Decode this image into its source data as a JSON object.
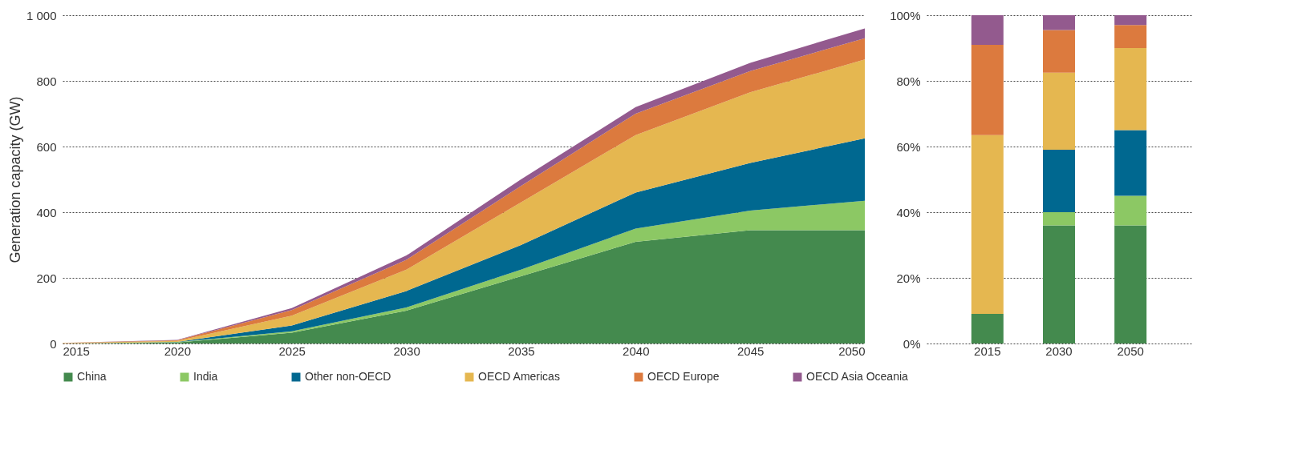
{
  "chart_data": [
    {
      "type": "area",
      "ylabel": "Generation capacity (GW)",
      "stacked": true,
      "x": [
        2015,
        2020,
        2025,
        2030,
        2035,
        2040,
        2045,
        2050
      ],
      "xlim": [
        2015,
        2050
      ],
      "xticks": [
        2015,
        2020,
        2025,
        2030,
        2035,
        2040,
        2045,
        2050
      ],
      "ylim": [
        0,
        1000
      ],
      "yticks": [
        0,
        200,
        400,
        600,
        800,
        {
          "value": 1000,
          "label": "1 000"
        }
      ],
      "grid": "y",
      "legend": "bottom",
      "series": [
        {
          "name": "China",
          "color": "#448a4e",
          "values": [
            0,
            3,
            33,
            100,
            205,
            310,
            345,
            345
          ]
        },
        {
          "name": "India",
          "color": "#8cc864",
          "values": [
            0,
            1,
            4,
            10,
            20,
            40,
            60,
            90
          ]
        },
        {
          "name": "Other non-OECD",
          "color": "#006890",
          "values": [
            0,
            1,
            18,
            50,
            75,
            110,
            145,
            190
          ]
        },
        {
          "name": "OECD Americas",
          "color": "#e5b750",
          "values": [
            1,
            3,
            30,
            65,
            130,
            175,
            215,
            240
          ]
        },
        {
          "name": "OECD Europe",
          "color": "#dc7a3e",
          "values": [
            1,
            2,
            17,
            30,
            50,
            65,
            65,
            65
          ]
        },
        {
          "name": "OECD Asia Oceania",
          "color": "#935a8e",
          "values": [
            0,
            1,
            6,
            13,
            20,
            20,
            25,
            30
          ]
        }
      ]
    },
    {
      "type": "bar",
      "stacked": true,
      "categories": [
        "2015",
        "2030",
        "2050"
      ],
      "ylim": [
        0,
        100
      ],
      "yticks": [
        {
          "value": 0,
          "label": "0%"
        },
        {
          "value": 20,
          "label": "20%"
        },
        {
          "value": 40,
          "label": "40%"
        },
        {
          "value": 60,
          "label": "60%"
        },
        {
          "value": 80,
          "label": "80%"
        },
        {
          "value": 100,
          "label": "100%"
        }
      ],
      "grid": "y",
      "series": [
        {
          "name": "China",
          "color": "#448a4e",
          "values": [
            9,
            36,
            36
          ]
        },
        {
          "name": "India",
          "color": "#8cc864",
          "values": [
            0,
            4,
            9
          ]
        },
        {
          "name": "Other non-OECD",
          "color": "#006890",
          "values": [
            0,
            19,
            20
          ]
        },
        {
          "name": "OECD Americas",
          "color": "#e5b750",
          "values": [
            54.5,
            23.5,
            25
          ]
        },
        {
          "name": "OECD Europe",
          "color": "#dc7a3e",
          "values": [
            27.5,
            13,
            7
          ]
        },
        {
          "name": "OECD Asia Oceania",
          "color": "#935a8e",
          "values": [
            9,
            4.5,
            3
          ]
        }
      ]
    }
  ]
}
